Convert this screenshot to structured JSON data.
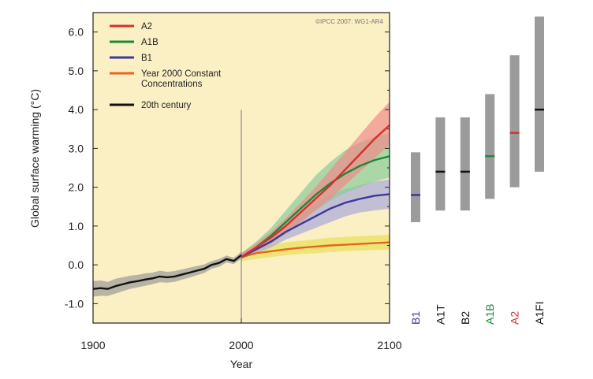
{
  "chart_data": {
    "type": "line",
    "credit": "©IPCC 2007: WG1-AR4",
    "xlabel": "Year",
    "ylabel": "Global surface warming (°C)",
    "xlim": [
      1900,
      2100
    ],
    "ylim": [
      -1.5,
      6.5
    ],
    "x_ticks": [
      1900,
      2000,
      2100
    ],
    "y_ticks": [
      -1.0,
      0.0,
      1.0,
      2.0,
      3.0,
      4.0,
      5.0,
      6.0
    ],
    "y_tick_labels": [
      "-1.0",
      "0.0",
      "1.0",
      "2.0",
      "3.0",
      "4.0",
      "5.0",
      "6.0"
    ],
    "background_color": "#fbf0c4",
    "year_marker": 2000,
    "legend_position": "top-left",
    "series": [
      {
        "name": "A2",
        "color": "#d62f2f",
        "band_color": "#f08a8a",
        "x": [
          2000,
          2010,
          2020,
          2030,
          2040,
          2050,
          2060,
          2070,
          2080,
          2090,
          2100
        ],
        "y": [
          0.2,
          0.45,
          0.7,
          1.0,
          1.35,
          1.7,
          2.05,
          2.45,
          2.85,
          3.25,
          3.6
        ],
        "lower": [
          0.15,
          0.35,
          0.55,
          0.8,
          1.1,
          1.4,
          1.7,
          2.05,
          2.4,
          2.75,
          3.1
        ],
        "upper": [
          0.3,
          0.55,
          0.85,
          1.2,
          1.6,
          2.0,
          2.45,
          2.9,
          3.35,
          3.8,
          4.2
        ]
      },
      {
        "name": "A1B",
        "color": "#1a8a3a",
        "band_color": "#88cc99",
        "x": [
          2000,
          2010,
          2020,
          2030,
          2040,
          2050,
          2060,
          2070,
          2080,
          2090,
          2100
        ],
        "y": [
          0.2,
          0.45,
          0.75,
          1.1,
          1.45,
          1.8,
          2.1,
          2.35,
          2.55,
          2.7,
          2.8
        ],
        "lower": [
          0.15,
          0.35,
          0.55,
          0.8,
          1.1,
          1.4,
          1.65,
          1.85,
          2.0,
          2.15,
          2.25
        ],
        "upper": [
          0.3,
          0.6,
          0.95,
          1.4,
          1.85,
          2.3,
          2.65,
          2.95,
          3.15,
          3.3,
          3.4
        ]
      },
      {
        "name": "B1",
        "color": "#3a3a9a",
        "band_color": "#aaaadd",
        "x": [
          2000,
          2010,
          2020,
          2030,
          2040,
          2050,
          2060,
          2070,
          2080,
          2090,
          2100
        ],
        "y": [
          0.2,
          0.4,
          0.6,
          0.85,
          1.05,
          1.25,
          1.45,
          1.6,
          1.7,
          1.78,
          1.82
        ],
        "lower": [
          0.15,
          0.3,
          0.45,
          0.65,
          0.8,
          0.95,
          1.1,
          1.25,
          1.35,
          1.4,
          1.45
        ],
        "upper": [
          0.3,
          0.5,
          0.75,
          1.05,
          1.3,
          1.55,
          1.8,
          1.95,
          2.05,
          2.15,
          2.2
        ]
      },
      {
        "name": "Year 2000 Constant Concentrations",
        "legend_lines": [
          "Year 2000 Constant",
          "Concentrations"
        ],
        "color": "#e8641e",
        "band_color": "#e8e05a",
        "x": [
          2000,
          2010,
          2020,
          2030,
          2040,
          2050,
          2060,
          2070,
          2080,
          2090,
          2100
        ],
        "y": [
          0.2,
          0.3,
          0.35,
          0.4,
          0.44,
          0.47,
          0.5,
          0.52,
          0.54,
          0.56,
          0.58
        ],
        "lower": [
          0.1,
          0.15,
          0.2,
          0.25,
          0.28,
          0.3,
          0.33,
          0.35,
          0.37,
          0.38,
          0.4
        ],
        "upper": [
          0.3,
          0.45,
          0.52,
          0.58,
          0.62,
          0.66,
          0.7,
          0.72,
          0.74,
          0.76,
          0.78
        ]
      },
      {
        "name": "20th century",
        "color": "#111111",
        "band_color": "#9a9a9a",
        "x": [
          1900,
          1905,
          1910,
          1915,
          1920,
          1925,
          1930,
          1935,
          1940,
          1945,
          1950,
          1955,
          1960,
          1965,
          1970,
          1975,
          1980,
          1985,
          1990,
          1995,
          2000
        ],
        "y": [
          -0.62,
          -0.6,
          -0.62,
          -0.55,
          -0.5,
          -0.45,
          -0.42,
          -0.38,
          -0.35,
          -0.3,
          -0.32,
          -0.3,
          -0.25,
          -0.2,
          -0.15,
          -0.1,
          0.0,
          0.05,
          0.15,
          0.1,
          0.25
        ],
        "lower": [
          -0.82,
          -0.8,
          -0.8,
          -0.74,
          -0.68,
          -0.62,
          -0.58,
          -0.54,
          -0.5,
          -0.45,
          -0.46,
          -0.44,
          -0.38,
          -0.33,
          -0.27,
          -0.21,
          -0.1,
          -0.05,
          0.06,
          0.02,
          0.16
        ],
        "upper": [
          -0.42,
          -0.4,
          -0.44,
          -0.36,
          -0.32,
          -0.28,
          -0.26,
          -0.22,
          -0.2,
          -0.15,
          -0.18,
          -0.16,
          -0.12,
          -0.07,
          -0.03,
          0.01,
          0.1,
          0.15,
          0.24,
          0.18,
          0.34
        ]
      }
    ],
    "scenario_ranges": [
      {
        "label": "B1",
        "low": 1.1,
        "high": 2.9,
        "best": 1.8,
        "label_color": "#3a3a9a",
        "best_color": "#3a3a9a"
      },
      {
        "label": "A1T",
        "low": 1.4,
        "high": 3.8,
        "best": 2.4,
        "label_color": "#111111",
        "best_color": "#111111"
      },
      {
        "label": "B2",
        "low": 1.4,
        "high": 3.8,
        "best": 2.4,
        "label_color": "#111111",
        "best_color": "#111111"
      },
      {
        "label": "A1B",
        "low": 1.7,
        "high": 4.4,
        "best": 2.8,
        "label_color": "#1a8a3a",
        "best_color": "#1a8a3a"
      },
      {
        "label": "A2",
        "low": 2.0,
        "high": 5.4,
        "best": 3.4,
        "label_color": "#d62f2f",
        "best_color": "#d62f2f"
      },
      {
        "label": "A1FI",
        "low": 2.4,
        "high": 6.4,
        "best": 4.0,
        "label_color": "#111111",
        "best_color": "#111111"
      }
    ],
    "range_bar_color": "#9b9b9b"
  }
}
